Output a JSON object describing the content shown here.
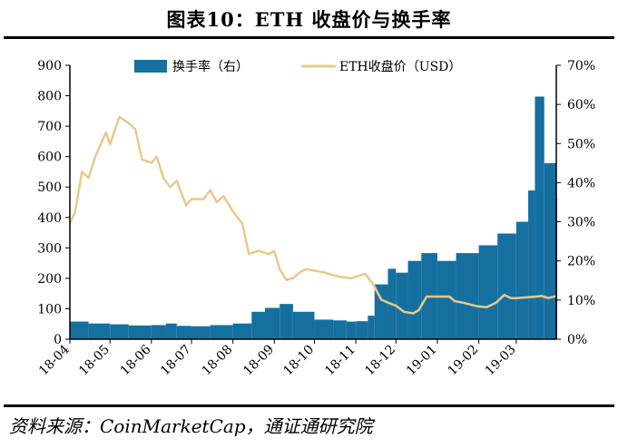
{
  "header": {
    "title": "图表10：ETH 收盘价与换手率"
  },
  "footer": {
    "source": "资料来源：CoinMarketCap，通证通研究院"
  },
  "colors": {
    "bar": "#1570a0",
    "line": "#e8c98a",
    "axis": "#000000"
  },
  "chart_data": {
    "type": "bar+line",
    "legend_position": "top",
    "grid": false,
    "x_ticks": [
      "18-04",
      "18-05",
      "18-06",
      "18-07",
      "18-08",
      "18-09",
      "18-10",
      "18-11",
      "18-12",
      "19-01",
      "19-02",
      "19-03"
    ],
    "x_range": [
      "2018-04-01",
      "2019-03-31"
    ],
    "y_left": {
      "ticks": [
        "0",
        "100",
        "200",
        "300",
        "400",
        "500",
        "600",
        "700",
        "800",
        "900"
      ],
      "range": [
        0,
        900
      ]
    },
    "y_right": {
      "ticks": [
        "0%",
        "10%",
        "20%",
        "30%",
        "40%",
        "50%",
        "60%",
        "70%"
      ],
      "range": [
        0,
        70
      ]
    },
    "series": [
      {
        "name": "换手率（右）",
        "type": "bar",
        "axis": "right",
        "unit": "%",
        "points": [
          [
            "2018-04-01",
            4.5
          ],
          [
            "2018-04-15",
            4.0
          ],
          [
            "2018-05-01",
            3.8
          ],
          [
            "2018-05-15",
            3.5
          ],
          [
            "2018-06-01",
            3.6
          ],
          [
            "2018-06-12",
            4.0
          ],
          [
            "2018-06-20",
            3.4
          ],
          [
            "2018-07-01",
            3.3
          ],
          [
            "2018-07-15",
            3.6
          ],
          [
            "2018-08-01",
            4.0
          ],
          [
            "2018-08-15",
            7.0
          ],
          [
            "2018-08-25",
            8.0
          ],
          [
            "2018-09-05",
            9.0
          ],
          [
            "2018-09-15",
            7.0
          ],
          [
            "2018-10-01",
            5.0
          ],
          [
            "2018-10-15",
            4.8
          ],
          [
            "2018-10-25",
            4.5
          ],
          [
            "2018-11-01",
            4.6
          ],
          [
            "2018-11-10",
            6.0
          ],
          [
            "2018-11-15",
            14.0
          ],
          [
            "2018-11-25",
            18.0
          ],
          [
            "2018-12-01",
            17.0
          ],
          [
            "2018-12-10",
            20.0
          ],
          [
            "2018-12-20",
            22.0
          ],
          [
            "2019-01-01",
            20.0
          ],
          [
            "2019-01-15",
            22.0
          ],
          [
            "2019-02-01",
            24.0
          ],
          [
            "2019-02-15",
            27.0
          ],
          [
            "2019-03-01",
            30.0
          ],
          [
            "2019-03-10",
            38.0
          ],
          [
            "2019-03-15",
            62.0
          ],
          [
            "2019-03-22",
            45.0
          ],
          [
            "2019-03-31",
            36.0
          ]
        ]
      },
      {
        "name": "ETH收盘价（USD）",
        "type": "line",
        "axis": "left",
        "unit": "USD",
        "points": [
          [
            "2018-04-01",
            380
          ],
          [
            "2018-04-05",
            420
          ],
          [
            "2018-04-10",
            550
          ],
          [
            "2018-04-15",
            530
          ],
          [
            "2018-04-20",
            600
          ],
          [
            "2018-04-28",
            680
          ],
          [
            "2018-05-01",
            640
          ],
          [
            "2018-05-08",
            730
          ],
          [
            "2018-05-15",
            710
          ],
          [
            "2018-05-20",
            690
          ],
          [
            "2018-05-25",
            590
          ],
          [
            "2018-06-01",
            580
          ],
          [
            "2018-06-05",
            600
          ],
          [
            "2018-06-10",
            530
          ],
          [
            "2018-06-15",
            500
          ],
          [
            "2018-06-20",
            520
          ],
          [
            "2018-06-27",
            440
          ],
          [
            "2018-07-01",
            460
          ],
          [
            "2018-07-10",
            460
          ],
          [
            "2018-07-15",
            490
          ],
          [
            "2018-07-20",
            450
          ],
          [
            "2018-07-25",
            470
          ],
          [
            "2018-08-01",
            420
          ],
          [
            "2018-08-08",
            380
          ],
          [
            "2018-08-13",
            280
          ],
          [
            "2018-08-20",
            290
          ],
          [
            "2018-08-28",
            280
          ],
          [
            "2018-09-01",
            290
          ],
          [
            "2018-09-05",
            230
          ],
          [
            "2018-09-10",
            195
          ],
          [
            "2018-09-15",
            200
          ],
          [
            "2018-09-20",
            220
          ],
          [
            "2018-09-25",
            230
          ],
          [
            "2018-10-01",
            225
          ],
          [
            "2018-10-08",
            220
          ],
          [
            "2018-10-15",
            210
          ],
          [
            "2018-10-20",
            205
          ],
          [
            "2018-10-28",
            200
          ],
          [
            "2018-11-01",
            205
          ],
          [
            "2018-11-08",
            215
          ],
          [
            "2018-11-14",
            180
          ],
          [
            "2018-11-20",
            130
          ],
          [
            "2018-11-25",
            120
          ],
          [
            "2018-12-01",
            110
          ],
          [
            "2018-12-07",
            90
          ],
          [
            "2018-12-14",
            85
          ],
          [
            "2018-12-18",
            95
          ],
          [
            "2018-12-24",
            140
          ],
          [
            "2019-01-01",
            140
          ],
          [
            "2019-01-10",
            140
          ],
          [
            "2019-01-14",
            125
          ],
          [
            "2019-01-20",
            120
          ],
          [
            "2019-01-31",
            108
          ],
          [
            "2019-02-07",
            105
          ],
          [
            "2019-02-14",
            120
          ],
          [
            "2019-02-20",
            145
          ],
          [
            "2019-02-25",
            135
          ],
          [
            "2019-03-01",
            135
          ],
          [
            "2019-03-10",
            138
          ],
          [
            "2019-03-16",
            140
          ],
          [
            "2019-03-20",
            142
          ],
          [
            "2019-03-25",
            135
          ],
          [
            "2019-03-31",
            142
          ]
        ]
      }
    ]
  }
}
